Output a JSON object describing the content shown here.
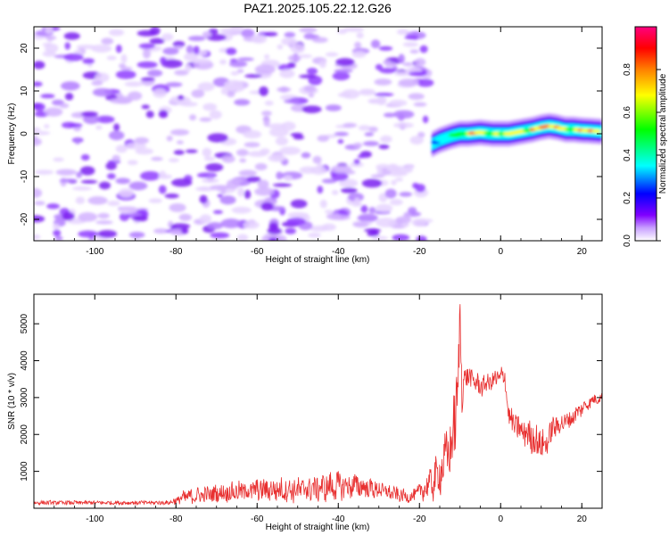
{
  "figure": {
    "title": "PAZ1.2025.105.22.12.G26"
  },
  "chart_data": [
    {
      "type": "heatmap",
      "title": "PAZ1.2025.105.22.12.G26",
      "xlabel": "Height of straight line (km)",
      "ylabel": "Frequency (Hz)",
      "xlim": [
        -115,
        25
      ],
      "ylim": [
        -25,
        25
      ],
      "x_ticks": [
        -100,
        -80,
        -60,
        -40,
        -20,
        0,
        20
      ],
      "y_ticks": [
        -20,
        -10,
        0,
        10,
        20
      ],
      "x_tick_labels": [
        "-100",
        "-80",
        "-60",
        "-40",
        "-20",
        "0",
        "20"
      ],
      "y_tick_labels": [
        "-20",
        "-10",
        "0",
        "10",
        "20"
      ],
      "noise_region_x": [
        -115,
        -18
      ],
      "signal_ridge": {
        "x": [
          -17,
          -15,
          -12,
          -10,
          -8,
          -5,
          -2,
          0,
          2,
          5,
          8,
          10,
          12,
          14,
          16,
          18,
          20,
          22,
          25
        ],
        "frequency": [
          -2.5,
          -1.5,
          -0.5,
          0,
          0,
          0.3,
          0,
          0,
          0,
          0.5,
          1.0,
          1.5,
          1.8,
          1.5,
          1.0,
          1.0,
          0.8,
          0.7,
          0.5
        ],
        "amplitude": [
          0.3,
          0.45,
          0.55,
          0.6,
          0.8,
          0.85,
          0.7,
          0.95,
          0.7,
          0.8,
          0.85,
          0.9,
          0.85,
          0.8,
          0.75,
          0.8,
          0.85,
          0.9,
          0.8
        ]
      },
      "colorbar": {
        "label": "Normalized spectral amplitude",
        "range": [
          0,
          1
        ],
        "ticks": [
          0,
          0.2,
          0.4,
          0.6,
          0.8
        ],
        "tick_labels": [
          "0.0",
          "0.2",
          "0.4",
          "0.6",
          "0.8"
        ],
        "colormap": [
          "#ffffff",
          "#c8a0ff",
          "#8000ff",
          "#0000ff",
          "#00ffff",
          "#00ff00",
          "#ffff00",
          "#ff8000",
          "#ff0000",
          "#ff0080"
        ]
      }
    },
    {
      "type": "line",
      "xlabel": "Height of straight line (km)",
      "ylabel": "SNR (10 * v/v)",
      "xlim": [
        -115,
        25
      ],
      "ylim": [
        0,
        5800
      ],
      "x_ticks": [
        -100,
        -80,
        -60,
        -40,
        -20,
        0,
        20
      ],
      "y_ticks": [
        1000,
        2000,
        3000,
        4000,
        5000
      ],
      "x_tick_labels": [
        "-100",
        "-80",
        "-60",
        "-40",
        "-20",
        "0",
        "20"
      ],
      "y_tick_labels": [
        "1000",
        "2000",
        "3000",
        "4000",
        "5000"
      ],
      "line_color": "#e83030",
      "envelope": {
        "x": [
          -115,
          -100,
          -82,
          -80,
          -78,
          -70,
          -60,
          -50,
          -40,
          -35,
          -30,
          -25,
          -22,
          -20,
          -18,
          -16,
          -14,
          -12,
          -11,
          -10.5,
          -10,
          -9.5,
          -9,
          -7,
          -5,
          -3,
          -1,
          1,
          2,
          3,
          5,
          7,
          9,
          11,
          13,
          15,
          17,
          19,
          21,
          23,
          25
        ],
        "mean": [
          150,
          150,
          150,
          200,
          300,
          400,
          500,
          500,
          600,
          600,
          500,
          350,
          300,
          450,
          600,
          800,
          1200,
          1800,
          2500,
          3500,
          5200,
          3000,
          3600,
          3500,
          3300,
          3400,
          3500,
          3600,
          2500,
          2300,
          2100,
          2000,
          1800,
          1700,
          2200,
          2300,
          2400,
          2600,
          2800,
          2950,
          3000
        ],
        "spread": [
          60,
          60,
          60,
          120,
          200,
          250,
          300,
          350,
          400,
          350,
          250,
          200,
          150,
          250,
          400,
          600,
          700,
          900,
          1200,
          900,
          600,
          700,
          350,
          300,
          300,
          250,
          300,
          300,
          300,
          350,
          400,
          450,
          450,
          400,
          350,
          300,
          250,
          250,
          200,
          150,
          150
        ]
      }
    }
  ]
}
